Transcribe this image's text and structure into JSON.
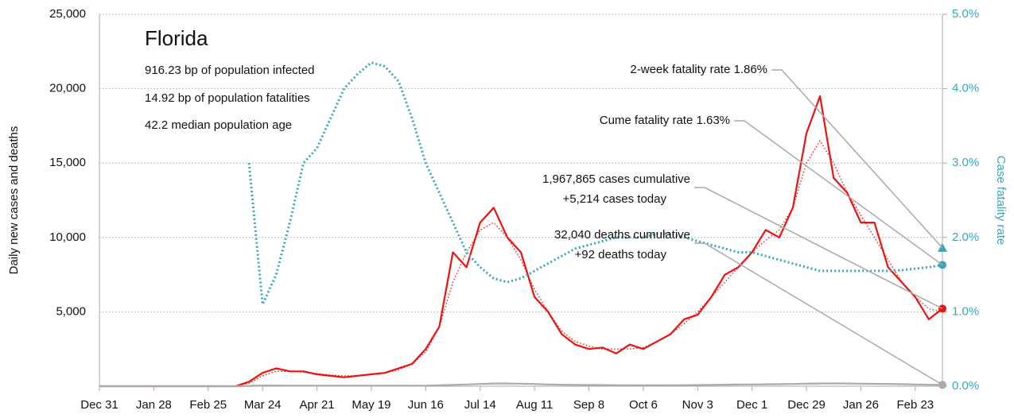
{
  "chart_data": {
    "type": "line",
    "info": {
      "title": "Florida",
      "lines": [
        "916.23 bp of population infected",
        "14.92 bp of population fatalities",
        "42.2 median population age"
      ]
    },
    "ylabel": "Daily new cases and deaths",
    "y2label": "Case fatality rate",
    "x": [
      0,
      7,
      14,
      21,
      28,
      35,
      42,
      49,
      56,
      63,
      70,
      77,
      84,
      91,
      98,
      105,
      112,
      119,
      126,
      133,
      140,
      147,
      154,
      161,
      168,
      175,
      182,
      189,
      196,
      203,
      210,
      217,
      224,
      231,
      238,
      245,
      252,
      259,
      266,
      273,
      280,
      287,
      294,
      301,
      308,
      315,
      322,
      329,
      336,
      343,
      350,
      357,
      364,
      371,
      378,
      385,
      392,
      399,
      406,
      413,
      420,
      427,
      434
    ],
    "xlim": [
      0,
      434
    ],
    "xticks": [
      {
        "value": 0,
        "label": "Dec 31"
      },
      {
        "value": 28,
        "label": "Jan 28"
      },
      {
        "value": 56,
        "label": "Feb 25"
      },
      {
        "value": 84,
        "label": "Mar 24"
      },
      {
        "value": 112,
        "label": "Apr 21"
      },
      {
        "value": 140,
        "label": "May 19"
      },
      {
        "value": 168,
        "label": "Jun 16"
      },
      {
        "value": 196,
        "label": "Jul 14"
      },
      {
        "value": 224,
        "label": "Aug 11"
      },
      {
        "value": 252,
        "label": "Sep 8"
      },
      {
        "value": 280,
        "label": "Oct 6"
      },
      {
        "value": 308,
        "label": "Nov 3"
      },
      {
        "value": 336,
        "label": "Dec 1"
      },
      {
        "value": 364,
        "label": "Dec 29"
      },
      {
        "value": 392,
        "label": "Jan 26"
      },
      {
        "value": 420,
        "label": "Feb 23"
      }
    ],
    "ylim": [
      0,
      25000
    ],
    "yticks": [
      {
        "value": 5000,
        "label": "5,000"
      },
      {
        "value": 10000,
        "label": "10,000"
      },
      {
        "value": 15000,
        "label": "15,000"
      },
      {
        "value": 20000,
        "label": "20,000"
      },
      {
        "value": 25000,
        "label": "25,000"
      }
    ],
    "y2lim": [
      0,
      5
    ],
    "y2ticks": [
      {
        "value": 0,
        "label": "0.0%"
      },
      {
        "value": 1,
        "label": "1.0%"
      },
      {
        "value": 2,
        "label": "2.0%"
      },
      {
        "value": 3,
        "label": "3.0%"
      },
      {
        "value": 4,
        "label": "4.0%"
      },
      {
        "value": 5,
        "label": "5.0%"
      }
    ],
    "grid": true,
    "series": [
      {
        "color": "#ee1111",
        "style": "solid",
        "values": [
          0,
          0,
          0,
          0,
          0,
          0,
          0,
          0,
          0,
          0,
          0,
          300,
          900,
          1200,
          1000,
          1000,
          800,
          700,
          600,
          700,
          800,
          900,
          1200,
          1500,
          2500,
          4000,
          9000,
          8000,
          11000,
          12000,
          10000,
          9000,
          6000,
          5000,
          3500,
          2800,
          2500,
          2600,
          2200,
          2800,
          2500,
          3000,
          3500,
          4500,
          4800,
          6000,
          7500,
          8000,
          9000,
          10500,
          10000,
          12000,
          17000,
          19500,
          14000,
          13000,
          11000,
          11000,
          8000,
          7000,
          6000,
          4500,
          5214
        ]
      },
      {
        "color": "#ee1111",
        "style": "dotted",
        "values": [
          0,
          0,
          0,
          0,
          0,
          0,
          0,
          0,
          0,
          0,
          0,
          200,
          700,
          1000,
          1000,
          950,
          850,
          750,
          700,
          700,
          800,
          900,
          1100,
          1500,
          2300,
          4000,
          7000,
          9000,
          10500,
          11000,
          10000,
          8500,
          6500,
          5000,
          3700,
          3000,
          2700,
          2500,
          2500,
          2500,
          2600,
          3000,
          3500,
          4200,
          5000,
          6000,
          7000,
          8000,
          9000,
          9800,
          10500,
          12000,
          15000,
          16500,
          15000,
          13000,
          11500,
          10000,
          8500,
          7000,
          6000,
          5200,
          5000
        ]
      },
      {
        "color": "#aaaaaa",
        "style": "solid",
        "values": [
          0,
          0,
          0,
          0,
          0,
          0,
          0,
          0,
          0,
          0,
          0,
          20,
          50,
          50,
          40,
          40,
          40,
          40,
          40,
          40,
          40,
          40,
          40,
          40,
          40,
          60,
          90,
          120,
          150,
          180,
          180,
          170,
          150,
          120,
          100,
          90,
          80,
          80,
          70,
          60,
          60,
          60,
          60,
          70,
          80,
          90,
          100,
          110,
          120,
          130,
          140,
          150,
          170,
          180,
          190,
          180,
          170,
          160,
          150,
          140,
          120,
          100,
          92
        ]
      },
      {
        "color": "#3aa6b9",
        "style": "dotted",
        "axis": "y2",
        "values": [
          null,
          null,
          null,
          null,
          null,
          null,
          null,
          null,
          null,
          null,
          null,
          3.0,
          1.1,
          1.5,
          2.2,
          3.0,
          3.2,
          3.6,
          4.0,
          4.2,
          4.35,
          4.3,
          4.1,
          3.6,
          3.0,
          2.6,
          2.2,
          1.8,
          1.6,
          1.45,
          1.4,
          1.45,
          1.55,
          1.65,
          1.75,
          1.85,
          1.9,
          1.95,
          2.0,
          2.0,
          2.0,
          2.05,
          2.05,
          2.0,
          1.95,
          1.9,
          1.85,
          1.8,
          1.8,
          1.75,
          1.7,
          1.65,
          1.6,
          1.55,
          1.55,
          1.55,
          1.55,
          1.55,
          1.55,
          1.56,
          1.58,
          1.6,
          1.63
        ]
      }
    ],
    "two_week_rate": 1.86,
    "annotations": {
      "two_week": "2-week fatality rate 1.86%",
      "cume": "Cume fatality rate 1.63%",
      "cases": [
        "1,967,865 cases cumulative",
        "+5,214 cases today"
      ],
      "deaths": [
        "32,040 deaths cumulative",
        "+92 deaths today"
      ]
    }
  }
}
